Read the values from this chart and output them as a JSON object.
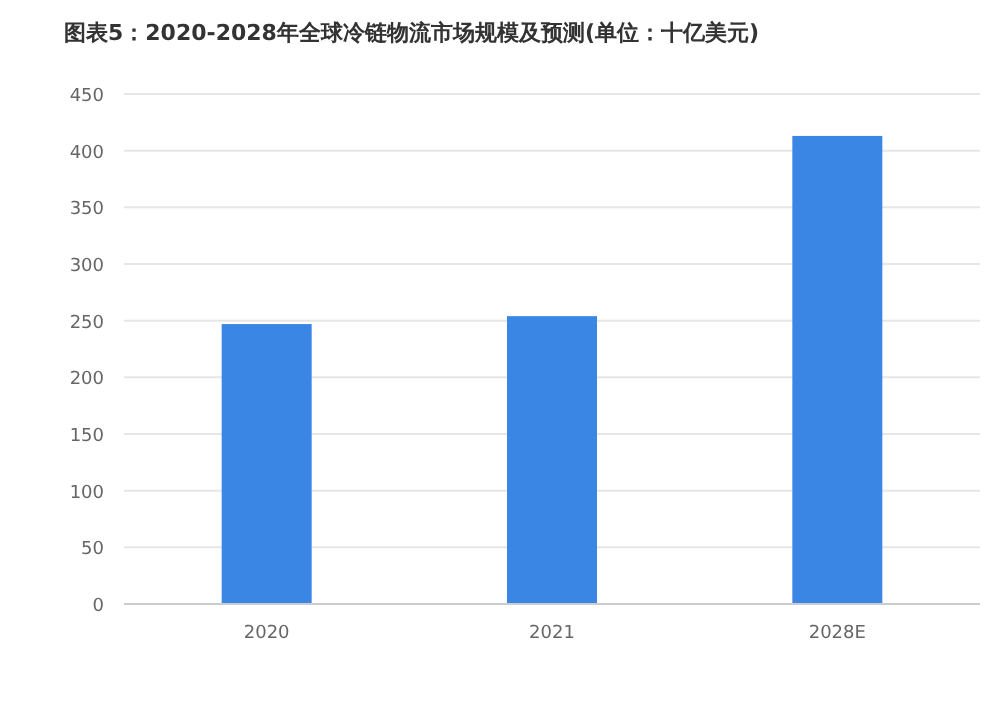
{
  "chart_data": {
    "type": "bar",
    "title": "图表5：2020-2028年全球冷链物流市场规模及预测(单位：十亿美元)",
    "categories": [
      "2020",
      "2021",
      "2028E"
    ],
    "values": [
      247,
      254,
      413
    ],
    "color": "#3a86e4",
    "ylim": [
      0,
      450
    ],
    "yticks": [
      0,
      50,
      100,
      150,
      200,
      250,
      300,
      350,
      400,
      450
    ],
    "grid": "y"
  }
}
